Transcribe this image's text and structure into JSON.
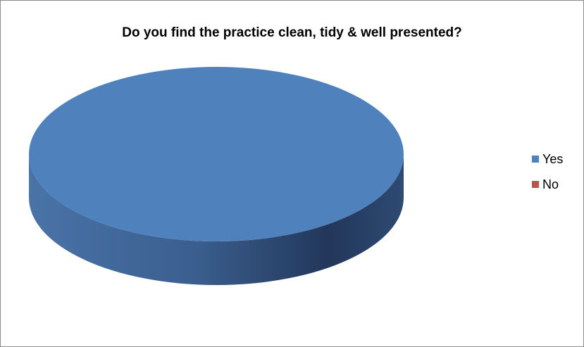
{
  "chart_data": {
    "type": "pie",
    "style": "3d",
    "title": "Do you find the practice clean, tidy & well presented?",
    "categories": [
      "Yes",
      "No"
    ],
    "values": [
      100,
      0
    ],
    "colors": [
      "#4f81bd",
      "#c0504d"
    ],
    "legend": {
      "placement": "right",
      "entries": [
        "Yes",
        "No"
      ]
    }
  }
}
